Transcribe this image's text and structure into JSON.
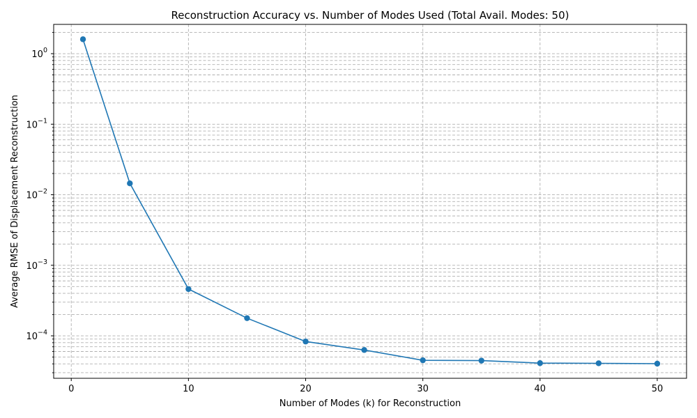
{
  "chart_data": {
    "type": "line",
    "title": "Reconstruction Accuracy vs. Number of Modes Used (Total Avail. Modes: 50)",
    "xlabel": "Number of Modes (k) for Reconstruction",
    "ylabel": "Average RMSE of Displacement Reconstruction",
    "x_scale": "linear",
    "y_scale": "log",
    "xlim": [
      -1.5,
      52.5
    ],
    "ylim": [
      2.5e-05,
      2.6
    ],
    "x_ticks": [
      0,
      10,
      20,
      30,
      40,
      50
    ],
    "y_ticks": [
      {
        "value": 0.0001,
        "base": "10",
        "exp": "−4"
      },
      {
        "value": 0.001,
        "base": "10",
        "exp": "−3"
      },
      {
        "value": 0.01,
        "base": "10",
        "exp": "−2"
      },
      {
        "value": 0.1,
        "base": "10",
        "exp": "−1"
      },
      {
        "value": 1,
        "base": "10",
        "exp": "0"
      }
    ],
    "grid": true,
    "color": "#1f77b4",
    "marker": "circle",
    "series": [
      {
        "x": [
          1,
          5,
          10,
          15,
          20,
          25,
          30,
          35,
          40,
          45,
          50
        ],
        "y": [
          1.6,
          0.0145,
          0.00046,
          0.000178,
          8.3e-05,
          6.3e-05,
          4.5e-05,
          4.45e-05,
          4.1e-05,
          4.08e-05,
          4.03e-05
        ]
      }
    ]
  }
}
